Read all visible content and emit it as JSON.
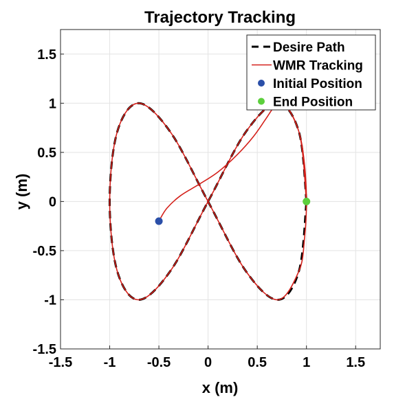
{
  "chart_data": {
    "type": "line",
    "title": "Trajectory Tracking",
    "xlabel": "x (m)",
    "ylabel": "y (m)",
    "xlim": [
      -1.5,
      1.75
    ],
    "ylim": [
      -1.5,
      1.75
    ],
    "xticks": [
      -1.5,
      -1,
      -0.5,
      0,
      0.5,
      1,
      1.5
    ],
    "xtick_labels": [
      "-1.5",
      "-1",
      "-0.5",
      "0",
      "0.5",
      "1",
      "1.5"
    ],
    "yticks": [
      -1.5,
      -1,
      -0.5,
      0,
      0.5,
      1,
      1.5
    ],
    "ytick_labels": [
      "-1.5",
      "-1",
      "-0.5",
      "0",
      "0.5",
      "1",
      "1.5"
    ],
    "grid": true,
    "legend_position": "top-right",
    "series": [
      {
        "name": "Desire Path",
        "style": "dashed",
        "color": "#000000",
        "x": [
          1.0,
          0.924,
          0.707,
          0.383,
          0.0,
          -0.383,
          -0.707,
          -0.924,
          -1.0,
          -0.924,
          -0.707,
          -0.383,
          0.0,
          0.383,
          0.707,
          0.924,
          1.0
        ],
        "y": [
          0.0,
          0.707,
          1.0,
          0.707,
          0.0,
          -0.707,
          -1.0,
          -0.707,
          0.0,
          0.707,
          1.0,
          0.707,
          0.0,
          -0.707,
          -1.0,
          -0.707,
          0.0
        ]
      },
      {
        "name": "WMR Tracking",
        "style": "solid",
        "color": "#d4201a",
        "x": [
          -0.5,
          -0.42,
          -0.28,
          -0.1,
          0.1,
          0.3,
          0.46,
          0.58,
          0.66,
          0.707,
          0.8,
          0.924,
          0.98,
          1.0,
          0.98,
          0.924,
          0.707,
          0.383,
          0.0,
          -0.383,
          -0.707,
          -0.924,
          -1.0,
          -0.924,
          -0.707,
          -0.383,
          0.0,
          0.383,
          0.707,
          0.924,
          1.0
        ],
        "y": [
          -0.2,
          -0.07,
          0.06,
          0.17,
          0.3,
          0.48,
          0.66,
          0.83,
          0.95,
          1.0,
          0.97,
          0.707,
          0.38,
          0.0,
          -0.38,
          -0.707,
          -1.0,
          -0.707,
          0.0,
          0.707,
          1.0,
          0.707,
          0.0,
          -0.707,
          -1.0,
          -0.707,
          0.0,
          0.707,
          1.0,
          0.707,
          0.0
        ]
      },
      {
        "name": "Initial Position",
        "style": "marker",
        "color": "#2b4fa8",
        "x": [
          -0.5
        ],
        "y": [
          -0.2
        ]
      },
      {
        "name": "End Position",
        "style": "marker",
        "color": "#5ccf3c",
        "x": [
          1.0
        ],
        "y": [
          0.0
        ]
      }
    ]
  }
}
